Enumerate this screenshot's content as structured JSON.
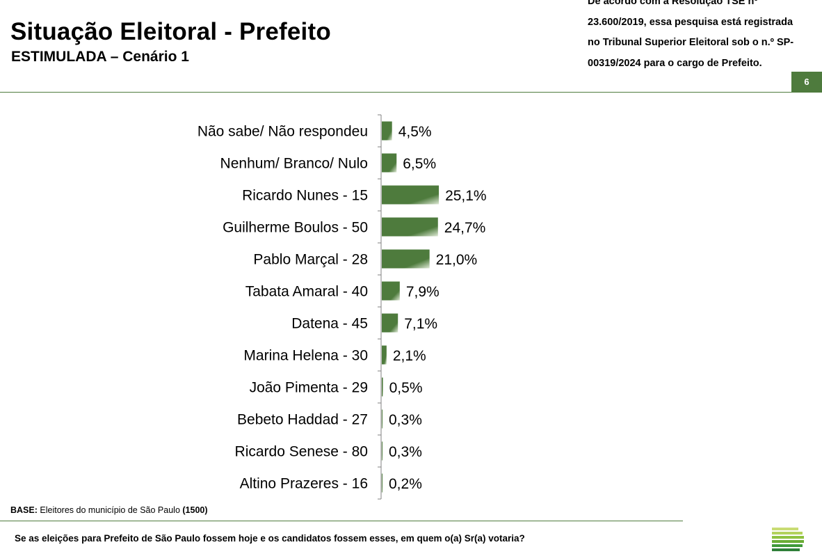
{
  "header": {
    "title": "Situação Eleitoral - Prefeito",
    "subtitle": "ESTIMULADA – Cenário 1",
    "notice_lines": [
      "De acordo com a Resolução TSE nº",
      "23.600/2019, essa pesquisa está registrada",
      "no Tribunal Superior Eleitoral sob o n.º SP-",
      "00319/2024 para o cargo de Prefeito."
    ],
    "page_number": "6"
  },
  "chart_data": {
    "type": "bar",
    "orientation": "horizontal",
    "categories": [
      "Não sabe/ Não respondeu",
      "Nenhum/ Branco/ Nulo",
      "Ricardo Nunes - 15",
      "Guilherme Boulos - 50",
      "Pablo Marçal - 28",
      "Tabata Amaral - 40",
      "Datena - 45",
      "Marina Helena - 30",
      "João Pimenta - 29",
      "Bebeto Haddad - 27",
      "Ricardo Senese - 80",
      "Altino Prazeres - 16"
    ],
    "values": [
      4.5,
      6.5,
      25.1,
      24.7,
      21.0,
      7.9,
      7.1,
      2.1,
      0.5,
      0.3,
      0.3,
      0.2
    ],
    "value_labels": [
      "4,5%",
      "6,5%",
      "25,1%",
      "24,7%",
      "21,0%",
      "7,9%",
      "7,1%",
      "2,1%",
      "0,5%",
      "0,3%",
      "0,3%",
      "0,2%"
    ],
    "bar_color": "#4e7b3d",
    "legend": "none",
    "grid": false
  },
  "footer": {
    "base_label": "BASE:",
    "base_text": "Eleitores do município de São Paulo",
    "base_count": "(1500)",
    "question": "Se as eleições para Prefeito de São Paulo fossem hoje e os candidatos fossem esses, em quem o(a) Sr(a) votaria?"
  }
}
